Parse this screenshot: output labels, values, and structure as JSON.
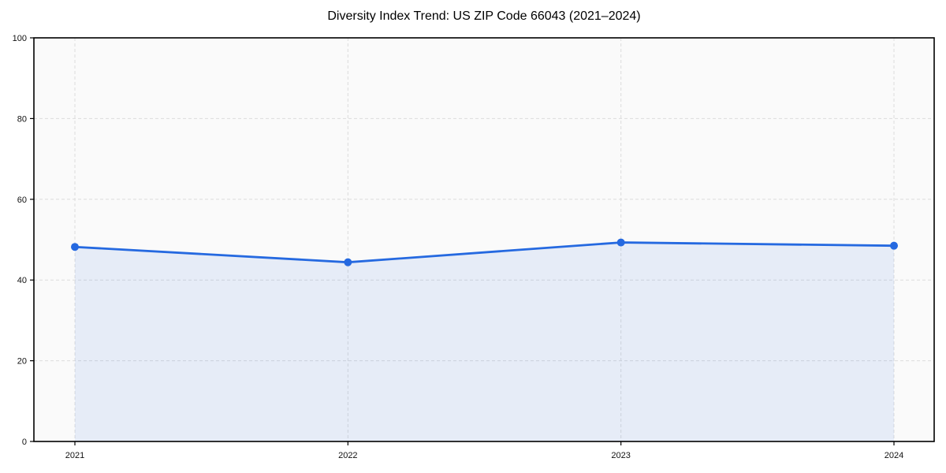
{
  "chart_data": {
    "type": "line",
    "variant": "line-with-area-fill-and-markers",
    "title": "Diversity Index Trend: US ZIP Code 66043 (2021–2024)",
    "x": [
      "2021",
      "2022",
      "2023",
      "2024"
    ],
    "series": [
      {
        "name": "Diversity Index",
        "values": [
          48.2,
          44.4,
          49.3,
          48.5
        ]
      }
    ],
    "xlabel": "",
    "ylabel": "",
    "ylim": [
      0,
      100
    ],
    "yticks": [
      0,
      20,
      40,
      60,
      80,
      100
    ],
    "grid": "dashed, both axes",
    "legend": "none",
    "colors": {
      "line": "#2569E0",
      "marker": "#2569E0",
      "area_fill": "rgba(37,105,224,0.09)",
      "gridline": "#DCDCDC",
      "plot_background": "#FAFAFA",
      "figure_background": "#FFFFFF",
      "axis_border": "#000000",
      "tick_label": "#111111",
      "title": "#000000"
    }
  }
}
